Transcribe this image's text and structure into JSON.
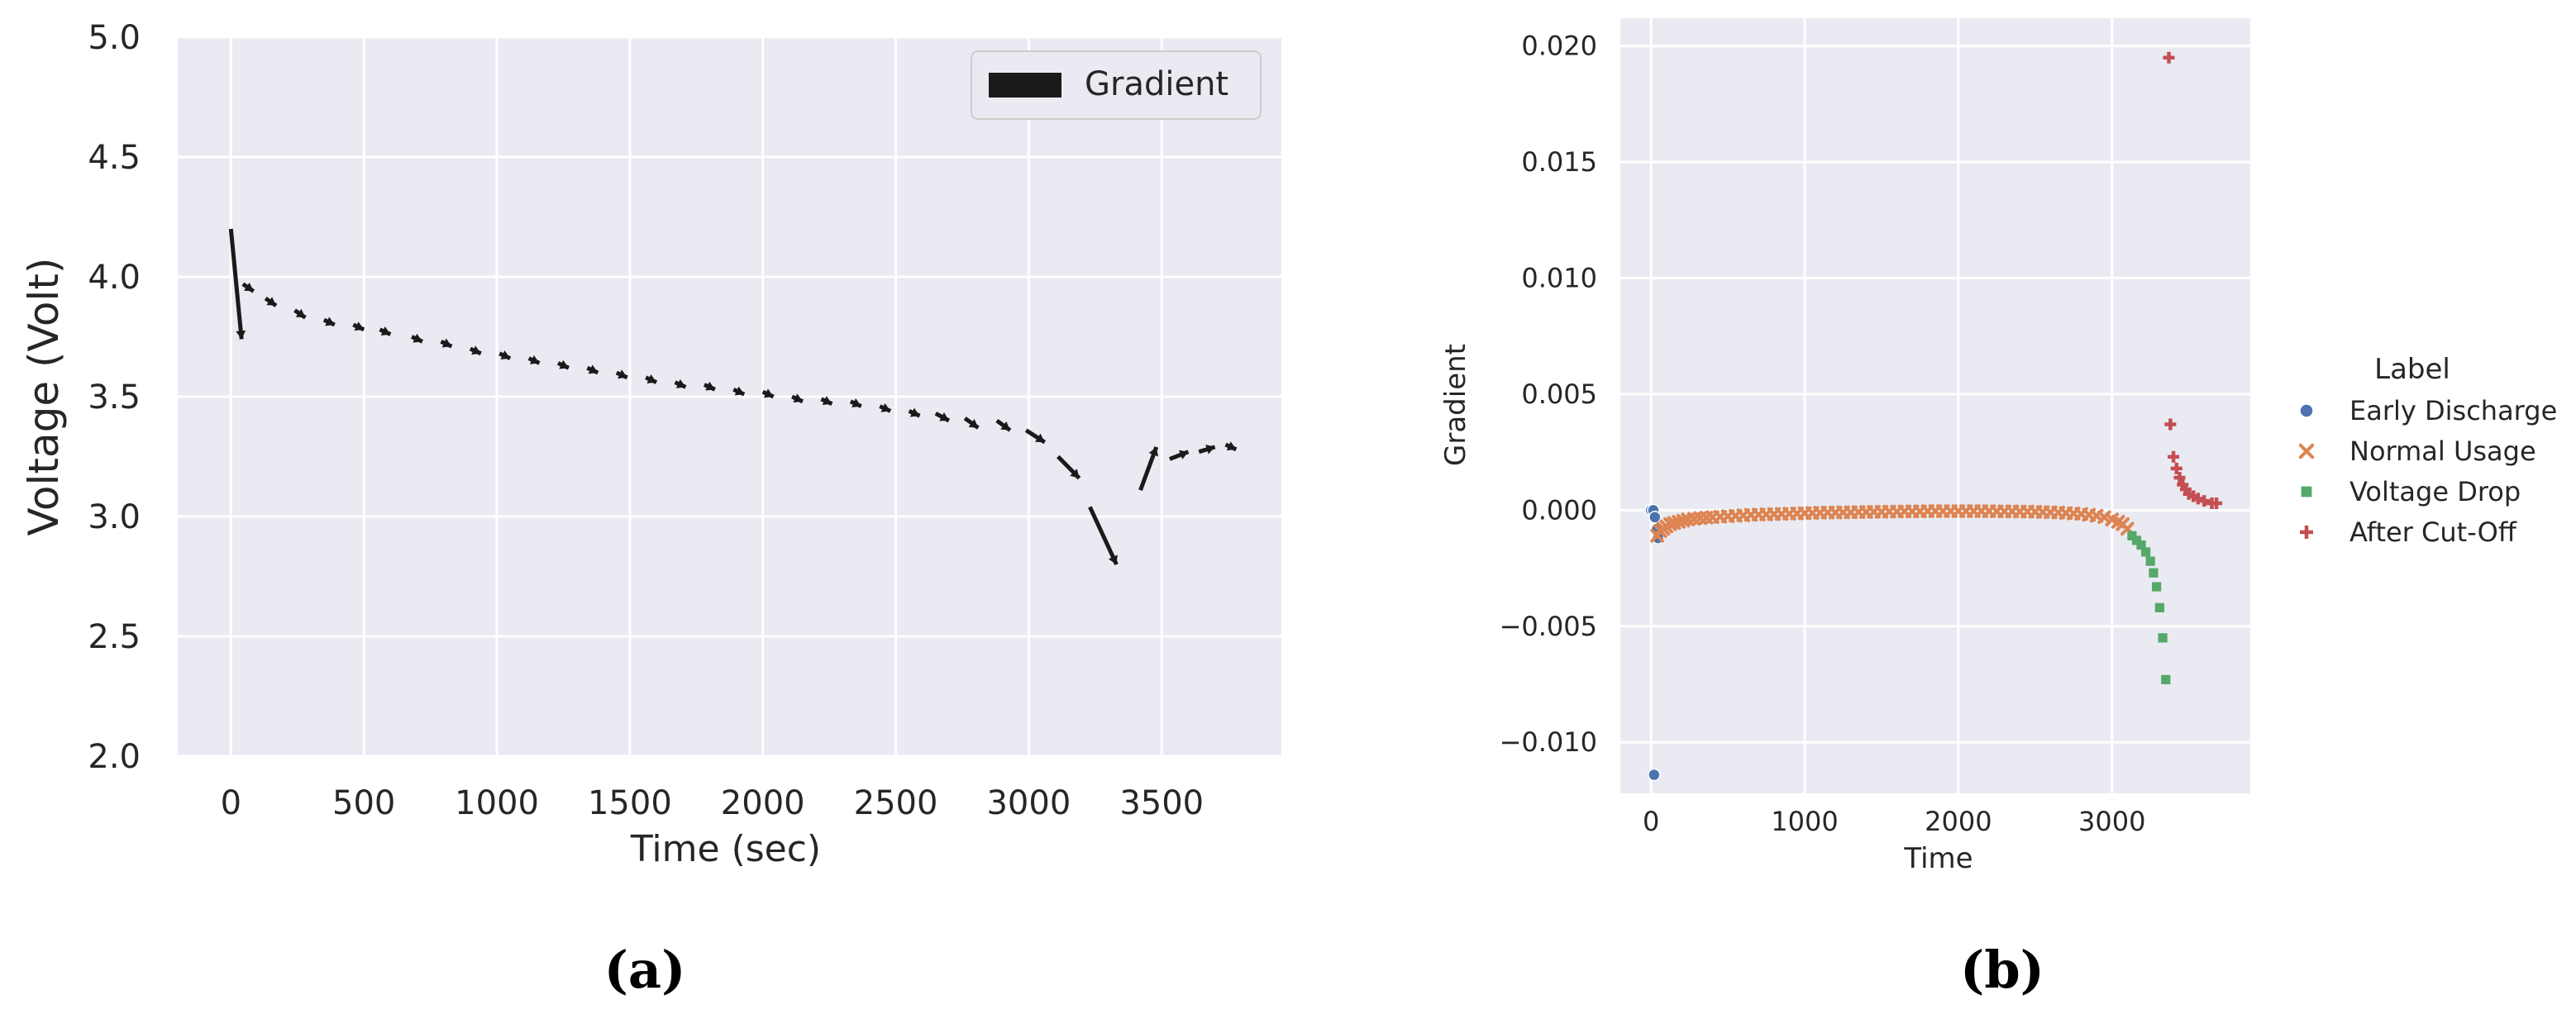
{
  "chart_data": [
    {
      "type": "quiver",
      "caption": "(a)",
      "xlabel": "Time (sec)",
      "ylabel": "Voltage (Volt)",
      "xlim": [
        -200,
        3950
      ],
      "ylim": [
        2.0,
        5.0
      ],
      "xticks": [
        0,
        500,
        1000,
        1500,
        2000,
        2500,
        3000,
        3500
      ],
      "yticks": [
        2.0,
        2.5,
        3.0,
        3.5,
        4.0,
        4.5,
        5.0
      ],
      "grid": true,
      "legend": {
        "placement": "top-right",
        "entries": [
          "Gradient"
        ]
      },
      "series": [
        {
          "name": "Gradient",
          "color": "#1a1a1a",
          "segments": [
            {
              "x1": 0,
              "y1": 4.2,
              "x2": 40,
              "y2": 3.74
            },
            {
              "x1": 45,
              "y1": 3.97,
              "x2": 85,
              "y2": 3.94
            },
            {
              "x1": 130,
              "y1": 3.91,
              "x2": 170,
              "y2": 3.88
            },
            {
              "x1": 240,
              "y1": 3.86,
              "x2": 280,
              "y2": 3.83
            },
            {
              "x1": 350,
              "y1": 3.82,
              "x2": 390,
              "y2": 3.8
            },
            {
              "x1": 460,
              "y1": 3.8,
              "x2": 500,
              "y2": 3.78
            },
            {
              "x1": 560,
              "y1": 3.78,
              "x2": 600,
              "y2": 3.76
            },
            {
              "x1": 680,
              "y1": 3.75,
              "x2": 720,
              "y2": 3.73
            },
            {
              "x1": 790,
              "y1": 3.73,
              "x2": 830,
              "y2": 3.71
            },
            {
              "x1": 900,
              "y1": 3.7,
              "x2": 940,
              "y2": 3.68
            },
            {
              "x1": 1010,
              "y1": 3.68,
              "x2": 1050,
              "y2": 3.66
            },
            {
              "x1": 1120,
              "y1": 3.66,
              "x2": 1160,
              "y2": 3.64
            },
            {
              "x1": 1230,
              "y1": 3.64,
              "x2": 1270,
              "y2": 3.62
            },
            {
              "x1": 1340,
              "y1": 3.62,
              "x2": 1380,
              "y2": 3.6
            },
            {
              "x1": 1450,
              "y1": 3.6,
              "x2": 1490,
              "y2": 3.58
            },
            {
              "x1": 1560,
              "y1": 3.58,
              "x2": 1600,
              "y2": 3.56
            },
            {
              "x1": 1670,
              "y1": 3.56,
              "x2": 1710,
              "y2": 3.54
            },
            {
              "x1": 1780,
              "y1": 3.55,
              "x2": 1820,
              "y2": 3.53
            },
            {
              "x1": 1890,
              "y1": 3.53,
              "x2": 1930,
              "y2": 3.51
            },
            {
              "x1": 2000,
              "y1": 3.52,
              "x2": 2040,
              "y2": 3.5
            },
            {
              "x1": 2110,
              "y1": 3.5,
              "x2": 2150,
              "y2": 3.48
            },
            {
              "x1": 2220,
              "y1": 3.49,
              "x2": 2260,
              "y2": 3.47
            },
            {
              "x1": 2330,
              "y1": 3.48,
              "x2": 2370,
              "y2": 3.46
            },
            {
              "x1": 2440,
              "y1": 3.46,
              "x2": 2480,
              "y2": 3.44
            },
            {
              "x1": 2550,
              "y1": 3.44,
              "x2": 2590,
              "y2": 3.42
            },
            {
              "x1": 2650,
              "y1": 3.43,
              "x2": 2700,
              "y2": 3.4
            },
            {
              "x1": 2760,
              "y1": 3.41,
              "x2": 2810,
              "y2": 3.37
            },
            {
              "x1": 2880,
              "y1": 3.4,
              "x2": 2930,
              "y2": 3.36
            },
            {
              "x1": 2990,
              "y1": 3.36,
              "x2": 3060,
              "y2": 3.31
            },
            {
              "x1": 3110,
              "y1": 3.25,
              "x2": 3190,
              "y2": 3.16
            },
            {
              "x1": 3230,
              "y1": 3.04,
              "x2": 3330,
              "y2": 2.8
            },
            {
              "x1": 3420,
              "y1": 3.11,
              "x2": 3480,
              "y2": 3.29
            },
            {
              "x1": 3530,
              "y1": 3.24,
              "x2": 3600,
              "y2": 3.27
            },
            {
              "x1": 3640,
              "y1": 3.27,
              "x2": 3700,
              "y2": 3.29
            },
            {
              "x1": 3740,
              "y1": 3.3,
              "x2": 3780,
              "y2": 3.28
            }
          ]
        }
      ]
    },
    {
      "type": "scatter",
      "caption": "(b)",
      "xlabel": "Time",
      "ylabel": "Gradient",
      "xlim": [
        -200,
        3900
      ],
      "ylim": [
        -0.0122,
        0.0212
      ],
      "xticks": [
        0,
        1000,
        2000,
        3000
      ],
      "yticks": [
        -0.01,
        -0.005,
        0.0,
        0.005,
        0.01,
        0.015,
        0.02
      ],
      "ytick_labels": [
        "−0.010",
        "−0.005",
        "0.000",
        "0.005",
        "0.010",
        "0.015",
        "0.020"
      ],
      "grid": true,
      "legend": {
        "title": "Label",
        "placement": "outside-right",
        "entries": [
          "Early Discharge",
          "Normal Usage",
          "Voltage Drop",
          "After Cut-Off"
        ]
      },
      "series": [
        {
          "name": "Early Discharge",
          "marker": "circle",
          "color": "#4c72b0",
          "points": [
            [
              0,
              0.0
            ],
            [
              15,
              0.0
            ],
            [
              25,
              -0.0003
            ],
            [
              40,
              -0.0008
            ],
            [
              45,
              -0.0012
            ],
            [
              20,
              -0.0114
            ]
          ]
        },
        {
          "name": "Normal Usage",
          "marker": "x",
          "color": "#dd8452",
          "points": [
            [
              40,
              -0.0011
            ],
            [
              60,
              -0.0009
            ],
            [
              80,
              -0.0008
            ],
            [
              100,
              -0.0007
            ],
            [
              125,
              -0.0006
            ],
            [
              150,
              -0.00055
            ],
            [
              180,
              -0.0005
            ],
            [
              210,
              -0.00045
            ],
            [
              240,
              -0.0004
            ],
            [
              280,
              -0.00037
            ],
            [
              320,
              -0.00034
            ],
            [
              360,
              -0.00032
            ],
            [
              400,
              -0.0003
            ],
            [
              450,
              -0.00028
            ],
            [
              500,
              -0.00026
            ],
            [
              550,
              -0.00024
            ],
            [
              600,
              -0.00022
            ],
            [
              650,
              -0.0002
            ],
            [
              700,
              -0.00019
            ],
            [
              750,
              -0.00018
            ],
            [
              800,
              -0.00017
            ],
            [
              850,
              -0.00016
            ],
            [
              900,
              -0.00015
            ],
            [
              950,
              -0.00014
            ],
            [
              1000,
              -0.00013
            ],
            [
              1050,
              -0.00012
            ],
            [
              1100,
              -0.00011
            ],
            [
              1150,
              -0.0001
            ],
            [
              1200,
              -0.0001
            ],
            [
              1250,
              -9e-05
            ],
            [
              1300,
              -9e-05
            ],
            [
              1350,
              -8e-05
            ],
            [
              1400,
              -8e-05
            ],
            [
              1450,
              -7e-05
            ],
            [
              1500,
              -7e-05
            ],
            [
              1550,
              -6e-05
            ],
            [
              1600,
              -6e-05
            ],
            [
              1650,
              -5e-05
            ],
            [
              1700,
              -5e-05
            ],
            [
              1750,
              -5e-05
            ],
            [
              1800,
              -4e-05
            ],
            [
              1850,
              -4e-05
            ],
            [
              1900,
              -4e-05
            ],
            [
              1950,
              -4e-05
            ],
            [
              2000,
              -4e-05
            ],
            [
              2050,
              -4e-05
            ],
            [
              2100,
              -4e-05
            ],
            [
              2150,
              -4e-05
            ],
            [
              2200,
              -4e-05
            ],
            [
              2250,
              -5e-05
            ],
            [
              2300,
              -5e-05
            ],
            [
              2350,
              -5e-05
            ],
            [
              2400,
              -6e-05
            ],
            [
              2450,
              -6e-05
            ],
            [
              2500,
              -7e-05
            ],
            [
              2550,
              -8e-05
            ],
            [
              2600,
              -9e-05
            ],
            [
              2650,
              -0.0001
            ],
            [
              2700,
              -0.00012
            ],
            [
              2750,
              -0.00014
            ],
            [
              2800,
              -0.00016
            ],
            [
              2850,
              -0.0002
            ],
            [
              2900,
              -0.00024
            ],
            [
              2950,
              -0.0003
            ],
            [
              3000,
              -0.0004
            ],
            [
              3040,
              -0.0005
            ],
            [
              3070,
              -0.0006
            ],
            [
              3100,
              -0.0008
            ]
          ]
        },
        {
          "name": "Voltage Drop",
          "marker": "square",
          "color": "#55a868",
          "points": [
            [
              3130,
              -0.0011
            ],
            [
              3160,
              -0.0013
            ],
            [
              3190,
              -0.0015
            ],
            [
              3220,
              -0.0018
            ],
            [
              3250,
              -0.0022
            ],
            [
              3270,
              -0.0027
            ],
            [
              3290,
              -0.0033
            ],
            [
              3310,
              -0.0042
            ],
            [
              3330,
              -0.0055
            ],
            [
              3350,
              -0.0073
            ]
          ]
        },
        {
          "name": "After Cut-Off",
          "marker": "plus",
          "color": "#c44e52",
          "points": [
            [
              3370,
              0.0195
            ],
            [
              3380,
              0.0037
            ],
            [
              3400,
              0.0023
            ],
            [
              3420,
              0.0018
            ],
            [
              3440,
              0.0014
            ],
            [
              3460,
              0.0011
            ],
            [
              3480,
              0.0009
            ],
            [
              3500,
              0.0007
            ],
            [
              3530,
              0.0006
            ],
            [
              3560,
              0.0005
            ],
            [
              3600,
              0.0004
            ],
            [
              3650,
              0.0003
            ],
            [
              3680,
              0.0003
            ]
          ]
        }
      ]
    }
  ]
}
